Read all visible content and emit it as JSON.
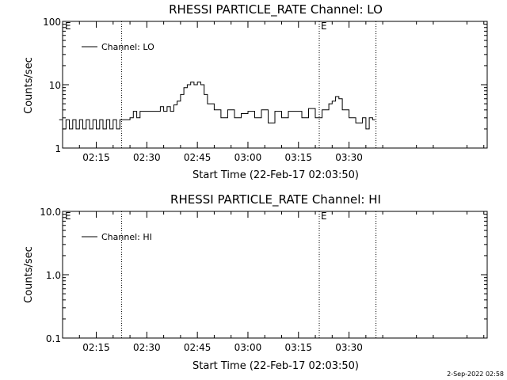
{
  "footer": {
    "timestamp": "2-Sep-2022 02:58"
  },
  "chart_data": [
    {
      "type": "line",
      "title": "RHESSI PARTICLE_RATE Channel: LO",
      "xlabel": "Start Time (22-Feb-17 02:03:50)",
      "ylabel": "Counts/sec",
      "yscale": "log",
      "ylim": [
        1,
        100
      ],
      "xlim_minutes": [
        5,
        131
      ],
      "x_tick_labels": [
        "02:15",
        "02:30",
        "02:45",
        "03:00",
        "03:15",
        "03:30"
      ],
      "y_tick_labels": [
        "1",
        "10",
        "100"
      ],
      "legend": {
        "label": "Channel: LO",
        "placement": "top-left"
      },
      "markers": [
        {
          "x": "02:22:30",
          "label": ""
        },
        {
          "x": "03:21:10",
          "label": "E"
        },
        {
          "x": "03:38:00",
          "label": ""
        }
      ],
      "corner_label": "E",
      "series": [
        {
          "name": "Channel: LO",
          "x": [
            "02:04:00",
            "02:05:00",
            "02:06:00",
            "02:07:00",
            "02:08:00",
            "02:09:00",
            "02:10:00",
            "02:11:00",
            "02:12:00",
            "02:13:00",
            "02:14:00",
            "02:15:00",
            "02:16:00",
            "02:17:00",
            "02:18:00",
            "02:19:00",
            "02:20:00",
            "02:21:00",
            "02:22:00",
            "02:23:00",
            "02:24:00",
            "02:25:00",
            "02:26:00",
            "02:27:00",
            "02:28:00",
            "02:30:00",
            "02:32:00",
            "02:34:00",
            "02:35:00",
            "02:36:00",
            "02:37:00",
            "02:38:00",
            "02:39:00",
            "02:40:00",
            "02:41:00",
            "02:42:00",
            "02:43:00",
            "02:44:00",
            "02:45:00",
            "02:46:00",
            "02:47:00",
            "02:48:00",
            "02:50:00",
            "02:52:00",
            "02:54:00",
            "02:56:00",
            "02:58:00",
            "03:00:00",
            "03:02:00",
            "03:04:00",
            "03:06:00",
            "03:08:00",
            "03:10:00",
            "03:12:00",
            "03:14:00",
            "03:16:00",
            "03:18:00",
            "03:20:00",
            "03:22:00",
            "03:24:00",
            "03:25:00",
            "03:26:00",
            "03:27:00",
            "03:28:00",
            "03:30:00",
            "03:32:00",
            "03:34:00",
            "03:35:00",
            "03:36:00",
            "03:37:00"
          ],
          "y": [
            2.8,
            2.0,
            2.8,
            2.0,
            2.8,
            2.0,
            2.8,
            2.0,
            2.8,
            2.0,
            2.8,
            2.0,
            2.8,
            2.0,
            2.8,
            2.0,
            2.8,
            2.0,
            2.8,
            2.8,
            2.8,
            3.0,
            3.8,
            3.0,
            3.8,
            3.8,
            3.8,
            4.5,
            3.8,
            4.5,
            3.8,
            4.8,
            5.5,
            7.0,
            9.0,
            10.0,
            11.0,
            10.0,
            11.0,
            10.0,
            7.0,
            5.0,
            4.0,
            3.0,
            4.0,
            3.0,
            3.5,
            3.8,
            3.0,
            4.0,
            2.5,
            3.8,
            3.0,
            3.8,
            3.8,
            3.0,
            4.2,
            3.0,
            4.0,
            5.0,
            5.5,
            6.5,
            6.0,
            4.0,
            3.0,
            2.5,
            3.0,
            2.0,
            3.0,
            2.8
          ]
        }
      ]
    },
    {
      "type": "line",
      "title": "RHESSI PARTICLE_RATE Channel: HI",
      "xlabel": "Start Time (22-Feb-17 02:03:50)",
      "ylabel": "Counts/sec",
      "yscale": "log",
      "ylim": [
        0.1,
        10
      ],
      "xlim_minutes": [
        5,
        131
      ],
      "x_tick_labels": [
        "02:15",
        "02:30",
        "02:45",
        "03:00",
        "03:15",
        "03:30"
      ],
      "y_tick_labels": [
        "0.1",
        "1.0",
        "10.0"
      ],
      "legend": {
        "label": "Channel: HI",
        "placement": "top-left"
      },
      "markers": [
        {
          "x": "02:22:30",
          "label": ""
        },
        {
          "x": "03:21:10",
          "label": "E"
        },
        {
          "x": "03:38:00",
          "label": ""
        }
      ],
      "corner_label": "E",
      "series": [
        {
          "name": "Channel: HI",
          "x": [],
          "y": []
        }
      ]
    }
  ]
}
